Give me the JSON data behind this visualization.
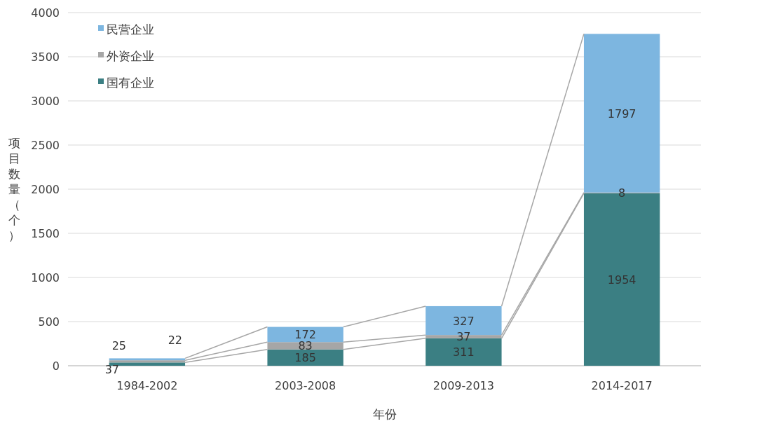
{
  "chart_data": {
    "type": "bar",
    "stacked": true,
    "xlabel": "年份",
    "ylabel": "项目数量（个）",
    "categories": [
      "1984-2002",
      "2003-2008",
      "2009-2013",
      "2014-2017"
    ],
    "series": [
      {
        "name": "国有企业",
        "color": "#3b7f83",
        "values": [
          37,
          185,
          311,
          1954
        ]
      },
      {
        "name": "外资企业",
        "color": "#a6a6a6",
        "values": [
          25,
          83,
          37,
          8
        ]
      },
      {
        "name": "民营企业",
        "color": "#7db6e0",
        "values": [
          22,
          172,
          327,
          1797
        ]
      }
    ],
    "ylim": [
      0,
      4000
    ],
    "yticks": [
      0,
      500,
      1000,
      1500,
      2000,
      2500,
      3000,
      3500,
      4000
    ],
    "grid": "y",
    "legend": "top left",
    "data_labels": true
  }
}
